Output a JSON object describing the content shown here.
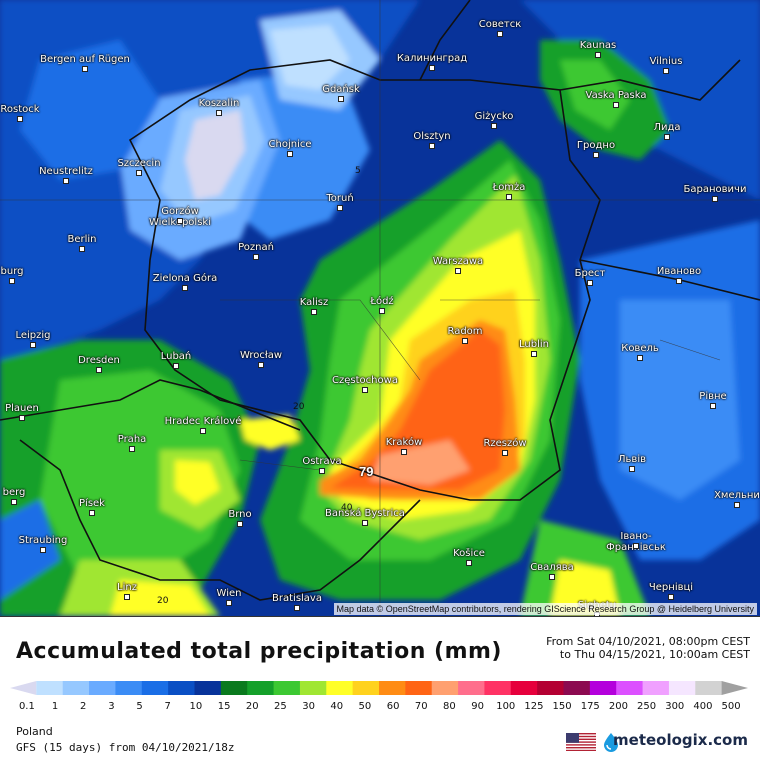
{
  "map": {
    "attribution": "Map data © OpenStreetMap contributors, rendering GIScience Research Group @ Heidelberg University",
    "max_label": "79",
    "contour_labels": [
      "5",
      "20",
      "40",
      "20"
    ],
    "cities": [
      {
        "name": "Советск"
      },
      {
        "name": "Kaunas"
      },
      {
        "name": "Vilnius"
      },
      {
        "name": "Калининград"
      },
      {
        "name": "Bergen auf Rügen"
      },
      {
        "name": "Koszalin"
      },
      {
        "name": "Gdańsk"
      },
      {
        "name": "Vaska Paska"
      },
      {
        "name": "Rostock"
      },
      {
        "name": "Olsztyn"
      },
      {
        "name": "Giżycko"
      },
      {
        "name": "Лида"
      },
      {
        "name": "Chojnice"
      },
      {
        "name": "Гродно"
      },
      {
        "name": "Neustrelitz"
      },
      {
        "name": "Szczecin"
      },
      {
        "name": "Łomża"
      },
      {
        "name": "Барановичи"
      },
      {
        "name": "Gorzów Wielkopolski"
      },
      {
        "name": "Toruń"
      },
      {
        "name": "Berlin"
      },
      {
        "name": "Poznań"
      },
      {
        "name": "Warszawa"
      },
      {
        "name": "Брест"
      },
      {
        "name": "Иваново"
      },
      {
        "name": "Zielona Góra"
      },
      {
        "name": "Kalisz"
      },
      {
        "name": "Łódź"
      },
      {
        "name": "Radom"
      },
      {
        "name": "Leipzig"
      },
      {
        "name": "Lublin"
      },
      {
        "name": "Ковель"
      },
      {
        "name": "Dresden"
      },
      {
        "name": "Lubań"
      },
      {
        "name": "Wrocław"
      },
      {
        "name": "Częstochowa"
      },
      {
        "name": "Plauen"
      },
      {
        "name": "Рівне"
      },
      {
        "name": "Hradec Králové"
      },
      {
        "name": "Praha"
      },
      {
        "name": "Kraków"
      },
      {
        "name": "Rzeszów"
      },
      {
        "name": "Ostrava"
      },
      {
        "name": "Львів"
      },
      {
        "name": "Хмельни"
      },
      {
        "name": "Písek"
      },
      {
        "name": "Brno"
      },
      {
        "name": "Banská Bystrica"
      },
      {
        "name": "Košice"
      },
      {
        "name": "Івано-Франківськ"
      },
      {
        "name": "Straubing"
      },
      {
        "name": "Свалява"
      },
      {
        "name": "Linz"
      },
      {
        "name": "Wien"
      },
      {
        "name": "Bratislava"
      },
      {
        "name": "Чернівці"
      },
      {
        "name": "Sighetu"
      },
      {
        "name": "berg"
      },
      {
        "name": "burg"
      }
    ]
  },
  "footer": {
    "title": "Accumulated total precipitation (mm)",
    "period_from": "From Sat 04/10/2021, 08:00pm CEST",
    "period_to": "to Thu 04/15/2021, 10:00am CEST",
    "region": "Poland",
    "model": "GFS (15 days) from 04/10/2021/18z",
    "brand": "meteologix.com"
  },
  "legend": {
    "ticks": [
      "0.1",
      "1",
      "2",
      "3",
      "5",
      "7",
      "10",
      "15",
      "20",
      "25",
      "30",
      "40",
      "50",
      "60",
      "70",
      "80",
      "90",
      "100",
      "125",
      "150",
      "175",
      "200",
      "250",
      "300",
      "400",
      "500"
    ],
    "colors": [
      "#d9d9f0",
      "#bfe0ff",
      "#96c8ff",
      "#6aabff",
      "#3b8cf5",
      "#1a6ee6",
      "#0a4fc4",
      "#08339a",
      "#0a7a1e",
      "#14a02a",
      "#3cc832",
      "#a0e632",
      "#ffff28",
      "#ffd21e",
      "#ff8c14",
      "#ff6414",
      "#ffa070",
      "#ff6e8c",
      "#ff3264",
      "#e6003c",
      "#b40032",
      "#8c0a50",
      "#b400dc",
      "#dc50ff",
      "#f0a0ff",
      "#f5e6ff",
      "#d2d2d2",
      "#a0a0a0"
    ]
  }
}
